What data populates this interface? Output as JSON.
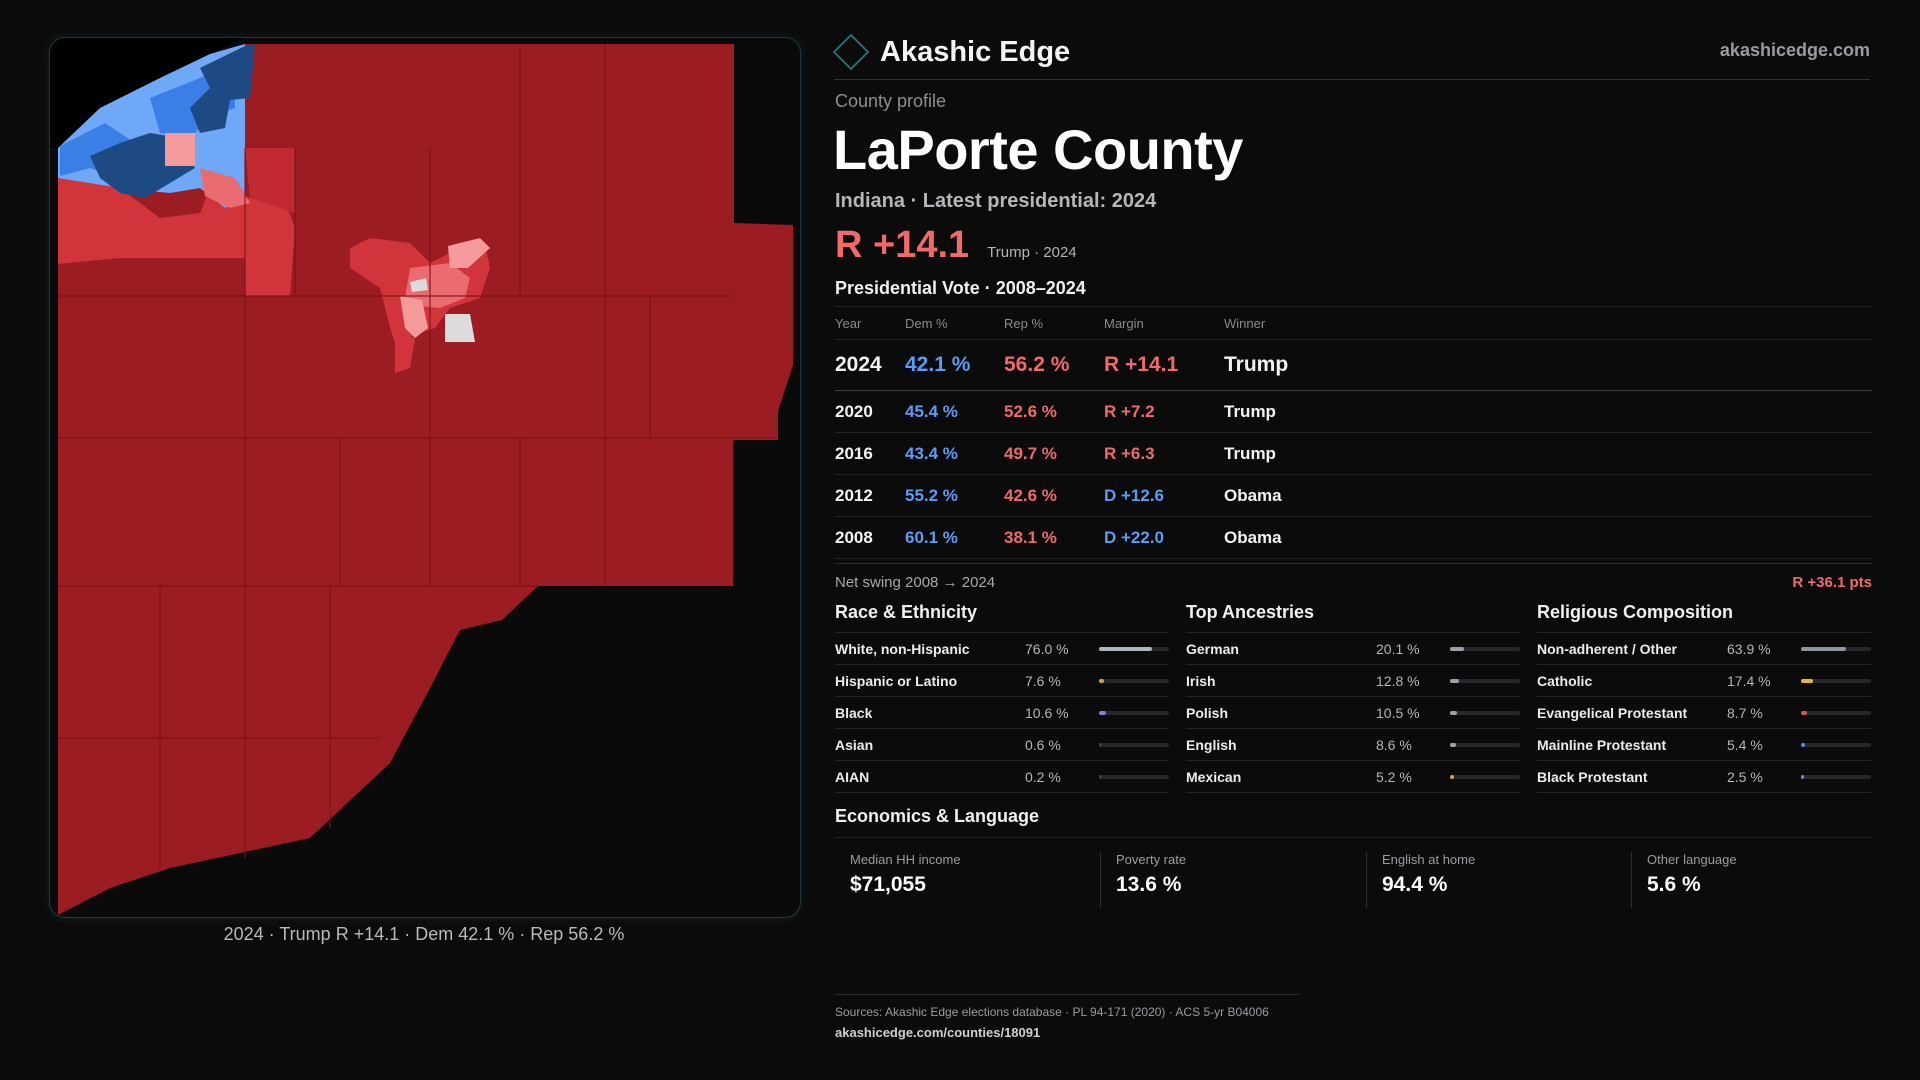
{
  "brand": {
    "name": "Akashic Edge",
    "url": "akashicedge.com",
    "logo_icon": "diamond-outline-icon"
  },
  "profile": {
    "eyebrow": "County profile",
    "title": "LaPorte County",
    "subtitle": "Indiana · Latest presidential: 2024",
    "headline_margin": "R +14.1",
    "headline_winner": "Trump · 2024"
  },
  "map": {
    "caption": "2024 · Trump  R +14.1 · Dem 42.1 % · Rep 56.2 %",
    "colors": {
      "safe_r": "#9b1c22",
      "lean_r": "#d1343b",
      "light_r": "#ea6b70",
      "pale_r": "#f59a9c",
      "tossup": "#dcdcdf",
      "light_d": "#6ea8f7",
      "lean_d": "#3b7fe6",
      "safe_d": "#1e4a84",
      "background": "#000000"
    }
  },
  "vote": {
    "section_title": "Presidential Vote · 2008–2024",
    "headers": {
      "year": "Year",
      "dem": "Dem %",
      "rep": "Rep %",
      "margin": "Margin",
      "winner": "Winner"
    },
    "rows": [
      {
        "year": "2024",
        "dem": "42.1 %",
        "rep": "56.2 %",
        "margin": "R +14.1",
        "party": "R",
        "winner": "Trump"
      },
      {
        "year": "2020",
        "dem": "45.4 %",
        "rep": "52.6 %",
        "margin": "R +7.2",
        "party": "R",
        "winner": "Trump"
      },
      {
        "year": "2016",
        "dem": "43.4 %",
        "rep": "49.7 %",
        "margin": "R +6.3",
        "party": "R",
        "winner": "Trump"
      },
      {
        "year": "2012",
        "dem": "55.2 %",
        "rep": "42.6 %",
        "margin": "D +12.6",
        "party": "D",
        "winner": "Obama"
      },
      {
        "year": "2008",
        "dem": "60.1 %",
        "rep": "38.1 %",
        "margin": "D +22.0",
        "party": "D",
        "winner": "Obama"
      }
    ],
    "swing_label": "Net swing 2008 → 2024",
    "swing_value": "R +36.1 pts",
    "colors": {
      "dem": "#5b9cf5",
      "rep": "#f06a6a"
    }
  },
  "race": {
    "title": "Race & Ethnicity",
    "rows": [
      {
        "name": "White, non-Hispanic",
        "pct": "76.0 %",
        "value": 76.0,
        "color": "#aeb5c2"
      },
      {
        "name": "Hispanic or Latino",
        "pct": "7.6 %",
        "value": 7.6,
        "color": "#e0a030"
      },
      {
        "name": "Black",
        "pct": "10.6 %",
        "value": 10.6,
        "color": "#8a7bd8"
      },
      {
        "name": "Asian",
        "pct": "0.6 %",
        "value": 0.6,
        "color": "#3a3d42"
      },
      {
        "name": "AIAN",
        "pct": "0.2 %",
        "value": 0.2,
        "color": "#3a3d42"
      }
    ]
  },
  "ancestry": {
    "title": "Top Ancestries",
    "rows": [
      {
        "name": "German",
        "pct": "20.1 %",
        "value": 20.1,
        "color": "#9aa2b0"
      },
      {
        "name": "Irish",
        "pct": "12.8 %",
        "value": 12.8,
        "color": "#9aa2b0"
      },
      {
        "name": "Polish",
        "pct": "10.5 %",
        "value": 10.5,
        "color": "#9aa2b0"
      },
      {
        "name": "English",
        "pct": "8.6 %",
        "value": 8.6,
        "color": "#9aa2b0"
      },
      {
        "name": "Mexican",
        "pct": "5.2 %",
        "value": 5.2,
        "color": "#e0a030"
      }
    ]
  },
  "religion": {
    "title": "Religious Composition",
    "rows": [
      {
        "name": "Non-adherent / Other",
        "pct": "63.9 %",
        "value": 63.9,
        "color": "#8f96a3"
      },
      {
        "name": "Catholic",
        "pct": "17.4 %",
        "value": 17.4,
        "color": "#e8b830"
      },
      {
        "name": "Evangelical Protestant",
        "pct": "8.7 %",
        "value": 8.7,
        "color": "#e05050"
      },
      {
        "name": "Mainline Protestant",
        "pct": "5.4 %",
        "value": 5.4,
        "color": "#4a8ef0"
      },
      {
        "name": "Black Protestant",
        "pct": "2.5 %",
        "value": 2.5,
        "color": "#8a7bd8"
      }
    ]
  },
  "economics": {
    "title": "Economics & Language",
    "items": [
      {
        "label": "Median HH income",
        "value": "$71,055"
      },
      {
        "label": "Poverty rate",
        "value": "13.6 %"
      },
      {
        "label": "English at home",
        "value": "94.4 %"
      },
      {
        "label": "Other language",
        "value": "5.6 %"
      }
    ]
  },
  "footer": {
    "sources": "Sources: Akashic Edge elections database · PL 94-171 (2020) · ACS 5-yr B04006",
    "url": "akashicedge.com/counties/18091"
  }
}
